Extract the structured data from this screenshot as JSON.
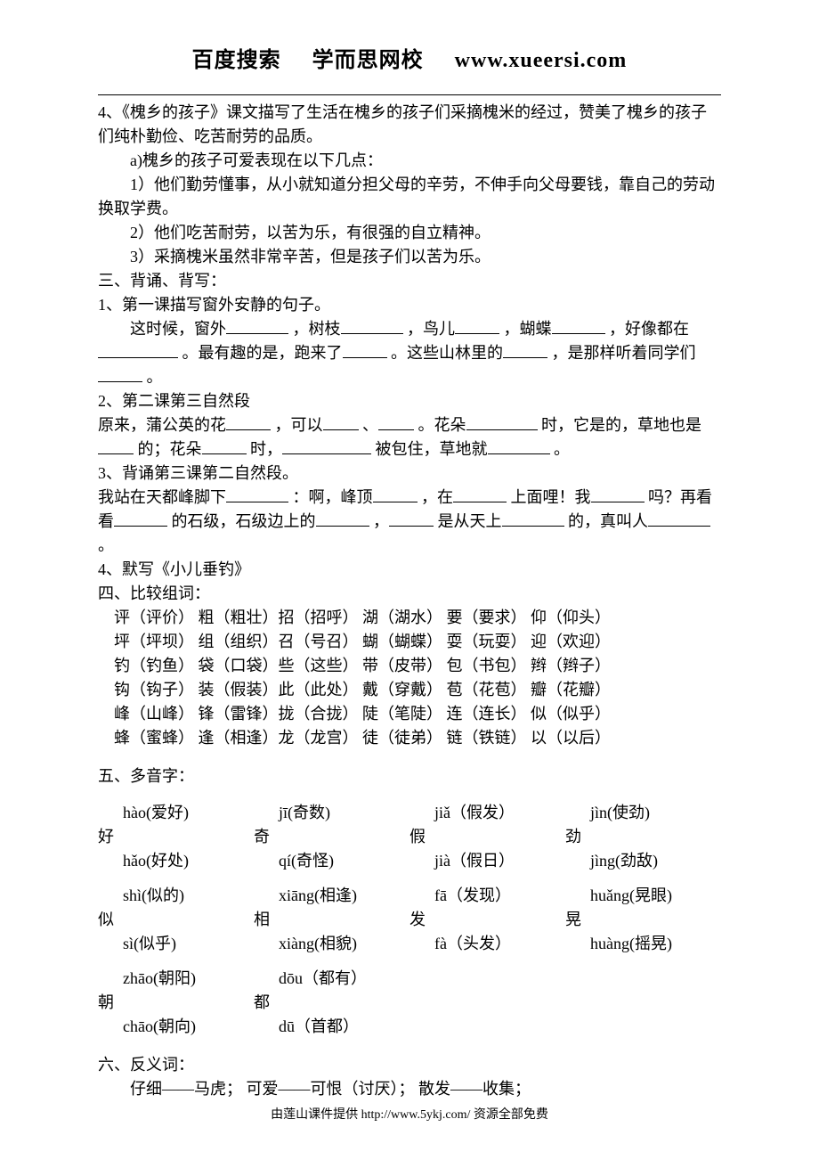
{
  "header": {
    "a": "百度搜索",
    "b": "学而思网校",
    "c": "www.xueersi.com"
  },
  "s4": {
    "line1": "4、《槐乡的孩子》课文描写了生活在槐乡的孩子们采摘槐米的经过，赞美了槐乡的孩子们纯朴勤俭、吃苦耐劳的品质。",
    "a": "a)槐乡的孩子可爱表现在以下几点：",
    "p1": "1）他们勤劳懂事，从小就知道分担父母的辛劳，不伸手向父母要钱，靠自己的劳动换取学费。",
    "p2": "2）他们吃苦耐劳，以苦为乐，有很强的自立精神。",
    "p3": "3）采摘槐米虽然非常辛苦，但是孩子们以苦为乐。"
  },
  "s3title": "三、背诵、背写：",
  "b1": {
    "title": "1、第一课描写窗外安静的句子。",
    "t1": "这时候，窗外",
    "t2": "，树枝",
    "t3": "，鸟儿",
    "t4": "，蝴蝶",
    "t5": "，好像都在",
    "t6": "。最有趣的是，跑来了",
    "t7": " 。这些山林里的",
    "t8": "，是那样听着同学们",
    "t9": " 。"
  },
  "b2": {
    "title": "2、第二课第三自然段",
    "t1": "原来，蒲公英的花",
    "t2": "，可以",
    "t3": "、",
    "t4": " 。花朵",
    "t5": " 时，它是的，草地也是",
    "t6": " 的；花朵",
    "t7": " 时，",
    "t8": " 被包住，草地就",
    "t9": " 。"
  },
  "b3": {
    "title": "3、背诵第三课第二自然段。",
    "t1": "我站在天都峰脚下",
    "t2": "：啊，峰顶",
    "t3": "，在",
    "t4": "上面哩！我",
    "t5": " 吗？再看看",
    "t6": "的石级，石级边上的",
    "t7": "，",
    "t8": " 是从天上",
    "t9": "的，真叫人",
    "t10": "。"
  },
  "b4": "4、默写《小儿垂钓》",
  "s4title": "四、比较组词：",
  "comp": [
    "评（评价）  粗（粗壮）招（招呼）  湖（湖水）  要（要求）  仰（仰头）",
    "坪（坪坝）  组（组织）召（号召）  蝴（蝴蝶）  耍（玩耍）  迎（欢迎）",
    "钓（钓鱼）  袋（口袋）些（这些）  带（皮带）  包（书包）  辫（辫子）",
    "钩（钩子）  装（假装）此（此处）  戴（穿戴）  苞（花苞）  瓣（花瓣）",
    "峰（山峰）  锋（雷锋）拢（合拢）  陡（笔陡）  连（连长）  似（似乎）",
    "蜂（蜜蜂）  逢（相逢）龙（龙宫）  徒（徒弟）  链（铁链）  以（以后）"
  ],
  "s5title": "五、多音字：",
  "poly": {
    "row1": [
      {
        "char": "好",
        "r1": "hào(爱好)",
        "r2": "hǎo(好处)"
      },
      {
        "char": "奇",
        "r1": "jī(奇数)",
        "r2": "qí(奇怪)"
      },
      {
        "char": "假",
        "r1": "jiǎ（假发）",
        "r2": "jià（假日）"
      },
      {
        "char": "劲",
        "r1": "jìn(使劲)",
        "r2": "jìng(劲敌)"
      }
    ],
    "row2": [
      {
        "char": "似",
        "r1": "shì(似的)",
        "r2": "sì(似乎)"
      },
      {
        "char": "相",
        "r1": "xiāng(相逢)",
        "r2": "xiàng(相貌)"
      },
      {
        "char": "发",
        "r1": "fā（发现）",
        "r2": "fà（头发）"
      },
      {
        "char": "晃",
        "r1": "huǎng(晃眼)",
        "r2": "huàng(摇晃)"
      }
    ],
    "row3": [
      {
        "char": "朝",
        "r1": "zhāo(朝阳)",
        "r2": "chāo(朝向)"
      },
      {
        "char": "都",
        "r1": "dōu（都有）",
        "r2": "dū（首都）"
      }
    ]
  },
  "s6title": "六、反义词：",
  "ant": "仔细——马虎；   可爱——可恨（讨厌）；   散发——收集；",
  "footer": "由莲山课件提供 http://www.5ykj.com/   资源全部免费"
}
